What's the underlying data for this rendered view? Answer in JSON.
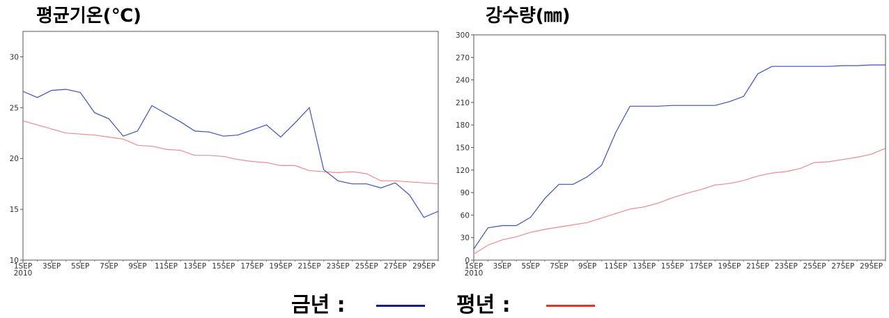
{
  "chart_data": [
    {
      "type": "line",
      "title": "평균기온(℃)",
      "xlabel": "",
      "ylabel": "",
      "ylim": [
        10,
        32.5
      ],
      "yticks": [
        10,
        15,
        20,
        25,
        30
      ],
      "x_tick_labels": [
        "1SEP",
        "3SEP",
        "5SEP",
        "7SEP",
        "9SEP",
        "11SEP",
        "13SEP",
        "15SEP",
        "17SEP",
        "19SEP",
        "21SEP",
        "23SEP",
        "25SEP",
        "27SEP",
        "29SEP"
      ],
      "x_year_label": "2010",
      "x": [
        1,
        2,
        3,
        4,
        5,
        6,
        7,
        8,
        9,
        10,
        11,
        12,
        13,
        14,
        15,
        16,
        17,
        18,
        19,
        20,
        21,
        22,
        23,
        24,
        25,
        26,
        27,
        28,
        29,
        30
      ],
      "grid": false,
      "series": [
        {
          "name": "금년",
          "color": "#3b4fc8",
          "values": [
            26.6,
            26.0,
            26.7,
            26.8,
            26.5,
            24.5,
            23.9,
            22.2,
            22.7,
            25.2,
            24.4,
            23.6,
            22.7,
            22.6,
            22.2,
            22.3,
            22.8,
            23.3,
            22.1,
            23.5,
            25.0,
            18.9,
            17.8,
            17.5,
            17.5,
            17.1,
            17.6,
            16.4,
            14.2,
            14.8
          ]
        },
        {
          "name": "평년",
          "color": "#f08a8a",
          "values": [
            23.7,
            23.3,
            22.9,
            22.5,
            22.4,
            22.3,
            22.1,
            21.9,
            21.3,
            21.2,
            20.9,
            20.8,
            20.3,
            20.3,
            20.2,
            19.9,
            19.7,
            19.6,
            19.3,
            19.3,
            18.8,
            18.7,
            18.6,
            18.7,
            18.5,
            17.8,
            17.8,
            17.7,
            17.6,
            17.5
          ]
        }
      ]
    },
    {
      "type": "line",
      "title": "강수량(㎜)",
      "xlabel": "",
      "ylabel": "",
      "ylim": [
        0,
        300
      ],
      "yticks": [
        0,
        30,
        60,
        90,
        120,
        150,
        180,
        210,
        240,
        270,
        300
      ],
      "x_tick_labels": [
        "1SEP",
        "3SEP",
        "5SEP",
        "7SEP",
        "9SEP",
        "11SEP",
        "13SEP",
        "15SEP",
        "17SEP",
        "19SEP",
        "21SEP",
        "23SEP",
        "25SEP",
        "27SEP",
        "29SEP"
      ],
      "x_year_label": "2010",
      "x": [
        1,
        2,
        3,
        4,
        5,
        6,
        7,
        8,
        9,
        10,
        11,
        12,
        13,
        14,
        15,
        16,
        17,
        18,
        19,
        20,
        21,
        22,
        23,
        24,
        25,
        26,
        27,
        28,
        29,
        30
      ],
      "grid": false,
      "series": [
        {
          "name": "금년",
          "color": "#3b4fc8",
          "values": [
            15,
            43,
            46,
            46,
            57,
            82,
            101,
            101,
            111,
            126,
            170,
            205,
            205,
            205,
            206,
            206,
            206,
            206,
            211,
            218,
            248,
            258,
            258,
            258,
            258,
            258,
            259,
            259,
            260,
            260
          ]
        },
        {
          "name": "평년",
          "color": "#f08a8a",
          "values": [
            8,
            20,
            27,
            31,
            37,
            41,
            44,
            47,
            50,
            56,
            62,
            68,
            71,
            76,
            83,
            89,
            94,
            100,
            102,
            106,
            112,
            116,
            118,
            122,
            130,
            131,
            134,
            137,
            141,
            149
          ]
        }
      ]
    }
  ],
  "legend": {
    "items": [
      {
        "label": "금년 :",
        "color": "#1a1a8c"
      },
      {
        "label": "평년 :",
        "color": "#e83030"
      }
    ]
  }
}
